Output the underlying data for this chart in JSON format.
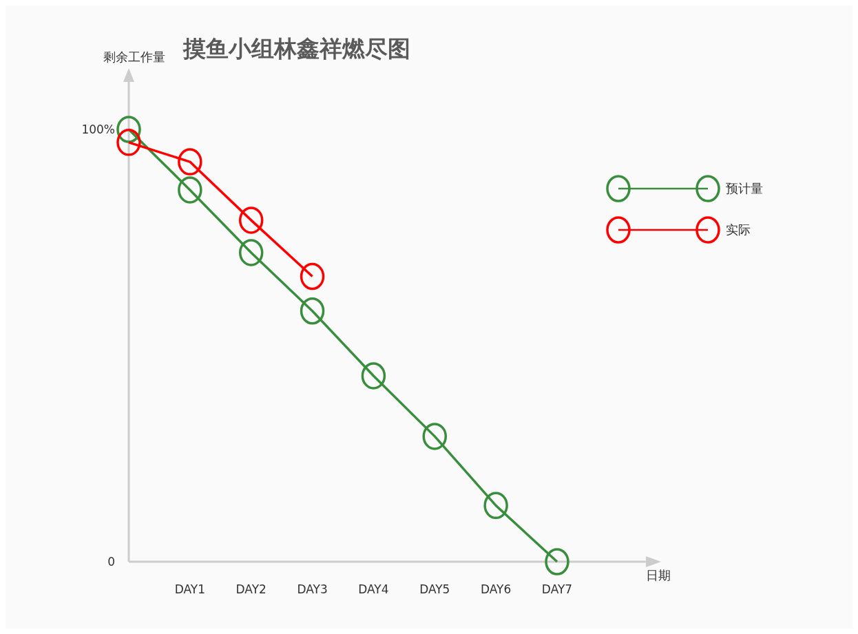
{
  "chart_data": {
    "type": "line",
    "title": "摸鱼小组林鑫祥燃尽图",
    "xlabel": "日期",
    "ylabel": "剩余工作量",
    "categories": [
      null,
      "DAY1",
      "DAY2",
      "DAY3",
      "DAY4",
      "DAY5",
      "DAY6",
      "DAY7"
    ],
    "series": [
      {
        "name": "预计量",
        "color": "#388e3c",
        "values": [
          100,
          86,
          71.5,
          58,
          43,
          29,
          13,
          0
        ]
      },
      {
        "name": "实际",
        "color": "#ff0000",
        "values": [
          97,
          92.5,
          79,
          66,
          null,
          null,
          null,
          null
        ]
      }
    ],
    "ylim": [
      0,
      111
    ],
    "yticks": [
      0,
      {
        "value": 100,
        "label": "100%"
      }
    ],
    "legend": "top right",
    "marker": "circle",
    "line_style": "solid"
  }
}
